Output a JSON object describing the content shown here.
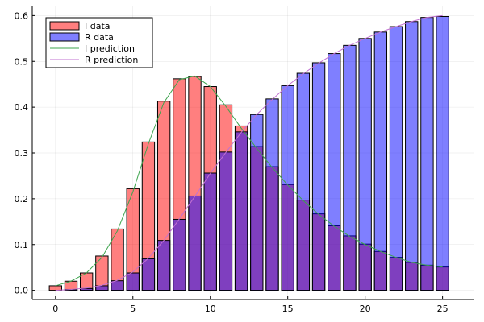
{
  "chart_data": {
    "type": "bar",
    "title": "",
    "xlabel": "",
    "ylabel": "",
    "xlim": [
      -1.5,
      27
    ],
    "ylim": [
      -0.02,
      0.62
    ],
    "xticks": [
      0,
      5,
      10,
      15,
      20,
      25
    ],
    "yticks": [
      0.0,
      0.1,
      0.2,
      0.3,
      0.4,
      0.5,
      0.6
    ],
    "ytick_labels": [
      "0.0",
      "0.1",
      "0.2",
      "0.3",
      "0.4",
      "0.5",
      "0.6"
    ],
    "grid": true,
    "legend_position": "top-left",
    "x": [
      0,
      1,
      2,
      3,
      4,
      5,
      6,
      7,
      8,
      9,
      10,
      11,
      12,
      13,
      14,
      15,
      16,
      17,
      18,
      19,
      20,
      21,
      22,
      23,
      24,
      25
    ],
    "series": [
      {
        "name": "I data",
        "kind": "bar",
        "color": "#ff0000",
        "values": [
          0.01,
          0.02,
          0.038,
          0.075,
          0.134,
          0.222,
          0.324,
          0.413,
          0.462,
          0.467,
          0.445,
          0.405,
          0.359,
          0.314,
          0.27,
          0.231,
          0.197,
          0.167,
          0.141,
          0.119,
          0.101,
          0.085,
          0.072,
          0.061,
          0.055,
          0.051
        ]
      },
      {
        "name": "R data",
        "kind": "bar",
        "color": "#0000ff",
        "values": [
          0.0,
          0.002,
          0.004,
          0.01,
          0.021,
          0.038,
          0.069,
          0.109,
          0.155,
          0.206,
          0.256,
          0.302,
          0.346,
          0.384,
          0.418,
          0.447,
          0.474,
          0.497,
          0.517,
          0.535,
          0.55,
          0.564,
          0.576,
          0.587,
          0.596,
          0.598
        ]
      },
      {
        "name": "I prediction",
        "kind": "line",
        "color": "#3da44d",
        "values": [
          0.01,
          0.02,
          0.038,
          0.072,
          0.13,
          0.215,
          0.32,
          0.41,
          0.46,
          0.468,
          0.445,
          0.402,
          0.354,
          0.31,
          0.268,
          0.23,
          0.196,
          0.166,
          0.14,
          0.118,
          0.1,
          0.085,
          0.072,
          0.061,
          0.055,
          0.051
        ]
      },
      {
        "name": "R prediction",
        "kind": "line",
        "color": "#c271d2",
        "values": [
          0.0,
          0.002,
          0.005,
          0.011,
          0.022,
          0.04,
          0.07,
          0.109,
          0.156,
          0.205,
          0.255,
          0.301,
          0.345,
          0.384,
          0.417,
          0.447,
          0.473,
          0.496,
          0.517,
          0.535,
          0.55,
          0.564,
          0.576,
          0.587,
          0.596,
          0.6
        ]
      }
    ]
  }
}
